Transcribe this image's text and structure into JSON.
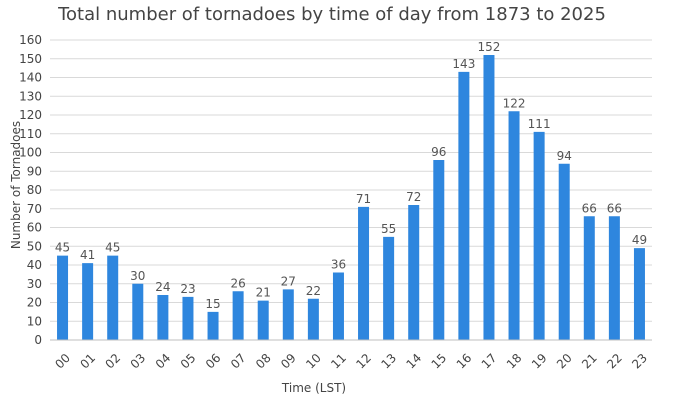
{
  "chart_data": {
    "type": "bar",
    "title": "Total number of tornadoes by time of day from 1873 to 2025",
    "xlabel": "Time (LST)",
    "ylabel": "Number of Tornadoes",
    "categories": [
      "00",
      "01",
      "02",
      "03",
      "04",
      "05",
      "06",
      "07",
      "08",
      "09",
      "10",
      "11",
      "12",
      "13",
      "14",
      "15",
      "16",
      "17",
      "18",
      "19",
      "20",
      "21",
      "22",
      "23"
    ],
    "values": [
      45,
      41,
      45,
      30,
      24,
      23,
      15,
      26,
      21,
      27,
      22,
      36,
      71,
      55,
      72,
      96,
      143,
      152,
      122,
      111,
      94,
      66,
      66,
      49
    ],
    "ylim": [
      0,
      160
    ],
    "yticks": [
      0,
      10,
      20,
      30,
      40,
      50,
      60,
      70,
      80,
      90,
      100,
      110,
      120,
      130,
      140,
      150,
      160
    ],
    "grid": true,
    "legend": "none",
    "colors": {
      "bar": "#2e86de",
      "grid": "#d9d9d9",
      "text": "#444444"
    }
  }
}
